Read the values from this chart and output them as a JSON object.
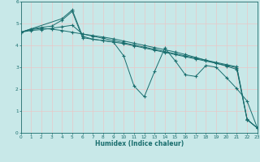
{
  "title": "",
  "xlabel": "Humidex (Indice chaleur)",
  "bg_color": "#c8e8e8",
  "grid_color": "#e8c8c8",
  "line_color": "#1a6e6e",
  "xlim": [
    0,
    23
  ],
  "ylim": [
    0,
    6
  ],
  "xticks": [
    0,
    1,
    2,
    3,
    4,
    5,
    6,
    7,
    8,
    9,
    10,
    11,
    12,
    13,
    14,
    15,
    16,
    17,
    18,
    19,
    20,
    21,
    22,
    23
  ],
  "yticks": [
    0,
    1,
    2,
    3,
    4,
    5,
    6
  ],
  "line1_x": [
    0,
    1,
    2,
    3,
    4,
    5,
    6,
    7,
    8,
    9,
    10,
    11,
    12,
    13,
    14,
    15,
    16,
    17,
    18,
    19,
    20,
    21,
    22,
    23
  ],
  "line1_y": [
    4.6,
    4.72,
    4.78,
    4.74,
    4.68,
    4.6,
    4.52,
    4.45,
    4.38,
    4.3,
    4.2,
    4.1,
    4.0,
    3.9,
    3.8,
    3.7,
    3.58,
    3.45,
    3.32,
    3.18,
    3.05,
    2.9,
    0.6,
    0.22
  ],
  "line2_x": [
    0,
    1,
    2,
    3,
    4,
    5,
    6,
    7,
    8,
    9,
    10,
    11,
    12,
    13,
    14,
    15,
    16,
    17,
    18,
    19,
    20,
    21,
    22,
    23
  ],
  "line2_y": [
    4.6,
    4.75,
    4.82,
    4.88,
    5.15,
    5.55,
    4.35,
    4.28,
    4.22,
    4.15,
    3.52,
    2.15,
    1.65,
    2.8,
    3.88,
    3.3,
    2.65,
    2.58,
    3.08,
    3.0,
    2.52,
    2.02,
    1.45,
    0.22
  ],
  "line3_x": [
    0,
    4,
    5,
    6,
    7,
    8,
    9,
    10,
    11,
    12,
    13,
    14,
    15,
    16,
    17,
    18,
    19,
    20,
    21,
    22,
    23
  ],
  "line3_y": [
    4.6,
    5.22,
    5.62,
    4.42,
    4.28,
    4.22,
    4.15,
    4.08,
    3.98,
    3.88,
    3.78,
    3.68,
    3.58,
    3.48,
    3.38,
    3.28,
    3.18,
    3.08,
    2.98,
    0.6,
    0.22
  ],
  "line4_x": [
    0,
    1,
    2,
    3,
    4,
    5,
    6,
    7,
    8,
    9,
    10,
    11,
    12,
    13,
    14,
    15,
    16,
    17,
    18,
    19,
    20,
    21,
    22,
    23
  ],
  "line4_y": [
    4.6,
    4.68,
    4.72,
    4.78,
    4.85,
    4.92,
    4.52,
    4.42,
    4.32,
    4.22,
    4.12,
    4.02,
    3.92,
    3.82,
    3.72,
    3.62,
    3.52,
    3.42,
    3.32,
    3.22,
    3.12,
    3.02,
    0.62,
    0.22
  ]
}
